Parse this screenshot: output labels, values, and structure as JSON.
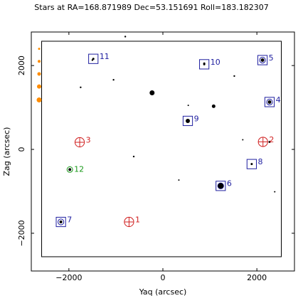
{
  "title": "Stars at RA=168.871989 Dec=53.151691 Roll=183.182307",
  "chart_data": {
    "type": "scatter",
    "title": "Stars at RA=168.871989 Dec=53.151691 Roll=183.182307",
    "xlabel": "Yaq (arcsec)",
    "ylabel": "Zag (arcsec)",
    "xlim": [
      -2800,
      2800
    ],
    "ylim": [
      -2900,
      2800
    ],
    "xticks": [
      -2000,
      0,
      2000
    ],
    "yticks": [
      -2000,
      0,
      2000
    ],
    "xtick_labels": [
      "−2000",
      "0",
      "2000"
    ],
    "ytick_labels": [
      "−2000",
      "0",
      "2000"
    ],
    "field_box": {
      "y": [
        -2580,
        2520
      ],
      "z": [
        -2560,
        2580
      ]
    },
    "colors": {
      "guide": "#1f1fa0",
      "acq": "#1f1fa0",
      "bad_guide": "#d02020",
      "mon": "#1a9a1a",
      "label_guide": "#1f1fa0",
      "label_bad": "#d02020",
      "label_mon": "#1a9a1a",
      "marker": "#ff8c00",
      "star": "#000000"
    },
    "magnitude_key": [
      {
        "z": 2400,
        "size": 1.5
      },
      {
        "z": 2100,
        "size": 2
      },
      {
        "z": 1800,
        "size": 2.5
      },
      {
        "z": 1500,
        "size": 3
      },
      {
        "z": 1180,
        "size": 3.5
      }
    ],
    "field_stars": [
      {
        "y": -800,
        "z": 2690,
        "size": 1.2
      },
      {
        "y": -1750,
        "z": 1480,
        "size": 1.2
      },
      {
        "y": -1500,
        "z": 2130,
        "size": 1.2
      },
      {
        "y": -1050,
        "z": 1660,
        "size": 1.2
      },
      {
        "y": -230,
        "z": 1350,
        "size": 3.5
      },
      {
        "y": 540,
        "z": 1050,
        "size": 1
      },
      {
        "y": 1080,
        "z": 1030,
        "size": 2.5
      },
      {
        "y": 1520,
        "z": 1750,
        "size": 1.2
      },
      {
        "y": 880,
        "z": 2050,
        "size": 1.5
      },
      {
        "y": -620,
        "z": -170,
        "size": 1.2
      },
      {
        "y": 340,
        "z": -730,
        "size": 1
      },
      {
        "y": 2380,
        "z": -1010,
        "size": 1
      },
      {
        "y": 1700,
        "z": 230,
        "size": 1
      },
      {
        "y": 2270,
        "z": 180,
        "size": 1.5
      }
    ],
    "acq_stars": [
      {
        "id": "1",
        "y": -720,
        "z": -1730,
        "half": 100,
        "kind": "bad",
        "star_size": 0
      },
      {
        "id": "2",
        "y": 2130,
        "z": 180,
        "half": 100,
        "kind": "bad",
        "star_size": 0
      },
      {
        "id": "3",
        "y": -1770,
        "z": 170,
        "half": 100,
        "kind": "bad",
        "star_size": 0
      },
      {
        "id": "4",
        "y": 2270,
        "z": 1130,
        "half": 100,
        "kind": "guide",
        "star_size": 2.5
      },
      {
        "id": "5",
        "y": 2120,
        "z": 2130,
        "half": 100,
        "kind": "guide",
        "star_size": 2.5
      },
      {
        "id": "6",
        "y": 1230,
        "z": -870,
        "half": 100,
        "kind": "guide",
        "star_size": 4
      },
      {
        "id": "7",
        "y": -2170,
        "z": -1730,
        "half": 100,
        "kind": "guide",
        "star_size": 2
      },
      {
        "id": "8",
        "y": 1890,
        "z": -350,
        "half": 100,
        "kind": "acq",
        "star_size": 1.5
      },
      {
        "id": "9",
        "y": 530,
        "z": 680,
        "half": 100,
        "kind": "acq",
        "star_size": 3
      },
      {
        "id": "10",
        "y": 880,
        "z": 2030,
        "half": 100,
        "kind": "acq",
        "star_size": 1.5
      },
      {
        "id": "11",
        "y": -1480,
        "z": 2160,
        "half": 100,
        "kind": "acq",
        "star_size": 1.5
      },
      {
        "id": "12",
        "y": -1980,
        "z": -480,
        "half": 60,
        "kind": "mon",
        "star_size": 2
      }
    ]
  }
}
